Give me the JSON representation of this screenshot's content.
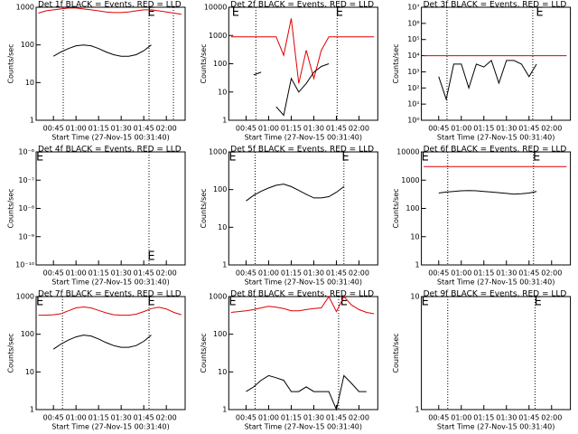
{
  "chart_data": [
    {
      "type": "line",
      "title": "Det 1f BLACK = Events, RED = LLD",
      "x_label": "Start Time (27-Nov-15 00:31:40)",
      "y_label": "Counts/sec",
      "log_y": true,
      "x": [
        35,
        40,
        45,
        50,
        55,
        60,
        65,
        70,
        75,
        80,
        85,
        90,
        95,
        100,
        105,
        110,
        115,
        120,
        125,
        130
      ],
      "xlim": [
        33.5,
        132.5
      ],
      "xticks": [
        {
          "value": 45,
          "label": "00:45"
        },
        {
          "value": 60,
          "label": "01:00"
        },
        {
          "value": 75,
          "label": "01:15"
        },
        {
          "value": 90,
          "label": "01:30"
        },
        {
          "value": 105,
          "label": "01:45"
        },
        {
          "value": 120,
          "label": "02:00"
        }
      ],
      "ylim": [
        1,
        1000
      ],
      "yticks": [
        1,
        10,
        100,
        1000
      ],
      "vlines": [
        51.5,
        108.5,
        124.7
      ],
      "annotations": [
        {
          "text": "E",
          "x": 110,
          "y": 1000
        }
      ],
      "series": [
        {
          "color": "#e00000",
          "values": [
            700,
            800,
            850,
            900,
            950,
            950,
            900,
            850,
            800,
            750,
            720,
            720,
            750,
            800,
            850,
            850,
            800,
            750,
            700,
            650
          ]
        },
        {
          "color": "#000000",
          "values": [
            null,
            null,
            50,
            65,
            80,
            95,
            100,
            95,
            80,
            65,
            55,
            50,
            50,
            55,
            70,
            100,
            null,
            null,
            null,
            null
          ]
        }
      ]
    },
    {
      "type": "line",
      "title": "Det 2f BLACK = Events, RED = LLD",
      "x_label": "Start Time (27-Nov-15 00:31:40)",
      "y_label": "Counts/sec",
      "log_y": true,
      "x": [
        35,
        40,
        45,
        50,
        55,
        60,
        65,
        70,
        75,
        80,
        85,
        90,
        95,
        100,
        105,
        110,
        115,
        120,
        125,
        130
      ],
      "xlim": [
        33.5,
        132.5
      ],
      "xticks": [
        {
          "value": 45,
          "label": "00:45"
        },
        {
          "value": 60,
          "label": "01:00"
        },
        {
          "value": 75,
          "label": "01:15"
        },
        {
          "value": 90,
          "label": "01:30"
        },
        {
          "value": 105,
          "label": "01:45"
        },
        {
          "value": 120,
          "label": "02:00"
        }
      ],
      "ylim": [
        1,
        10000
      ],
      "yticks": [
        1,
        10,
        100,
        1000,
        10000
      ],
      "vlines": [
        51.5,
        105.5
      ],
      "annotations": [
        {
          "text": "E",
          "x": 38,
          "y": 10000
        },
        {
          "text": "E",
          "x": 107,
          "y": 10000
        }
      ],
      "series": [
        {
          "color": "#e00000",
          "values": [
            900,
            900,
            900,
            900,
            900,
            900,
            900,
            200,
            4000,
            20,
            300,
            30,
            300,
            900,
            900,
            900,
            900,
            900,
            900,
            900
          ]
        },
        {
          "color": "#000000",
          "values": [
            null,
            null,
            null,
            40,
            50,
            null,
            3,
            1.5,
            30,
            10,
            20,
            50,
            80,
            100,
            null,
            null,
            null,
            null,
            null,
            null
          ]
        }
      ]
    },
    {
      "type": "line",
      "title": "Det 3f BLACK = Events, RED = LLD",
      "x_label": "Start Time (27-Nov-15 00:31:40)",
      "y_label": "Counts/sec",
      "log_y": true,
      "x": [
        35,
        40,
        45,
        50,
        55,
        60,
        65,
        70,
        75,
        80,
        85,
        90,
        95,
        100,
        105,
        110,
        115,
        120,
        125,
        130
      ],
      "xlim": [
        33.5,
        132.5
      ],
      "xticks": [
        {
          "value": 45,
          "label": "00:45"
        },
        {
          "value": 60,
          "label": "01:00"
        },
        {
          "value": 75,
          "label": "01:15"
        },
        {
          "value": 90,
          "label": "01:30"
        },
        {
          "value": 105,
          "label": "01:45"
        },
        {
          "value": 120,
          "label": "02:00"
        }
      ],
      "ylim": [
        1,
        10000000
      ],
      "yticks": [
        {
          "value": 1,
          "label": "10⁰"
        },
        {
          "value": 10,
          "label": "10¹"
        },
        {
          "value": 100,
          "label": "10²"
        },
        {
          "value": 1000,
          "label": "10³"
        },
        {
          "value": 10000,
          "label": "10⁴"
        },
        {
          "value": 100000,
          "label": "10⁵"
        },
        {
          "value": 1000000,
          "label": "10⁶"
        },
        {
          "value": 10000000,
          "label": "10⁷"
        }
      ],
      "vlines": [
        50.5,
        107.5
      ],
      "annotations": [
        {
          "text": "E",
          "x": 112,
          "y": 10000000
        }
      ],
      "series": [
        {
          "color": "#e00000",
          "values": [
            10000,
            10000,
            10000,
            10000,
            10000,
            10000,
            10000,
            10000,
            10000,
            10000,
            10000,
            10000,
            10000,
            10000,
            10000,
            10000,
            10000,
            10000,
            10000,
            10000
          ]
        },
        {
          "color": "#000000",
          "values": [
            null,
            null,
            500,
            20,
            3000,
            3000,
            100,
            3000,
            2000,
            5000,
            200,
            5000,
            5000,
            3000,
            500,
            3000,
            null,
            null,
            null,
            null
          ]
        }
      ]
    },
    {
      "type": "line",
      "title": "Det 4f BLACK = Events, RED = LLD",
      "x_label": "Start Time (27-Nov-15 00:31:40)",
      "y_label": "Counts/sec",
      "log_y": true,
      "xlim": [
        33.5,
        132.5
      ],
      "xticks": [
        {
          "value": 45,
          "label": "00:45"
        },
        {
          "value": 60,
          "label": "01:00"
        },
        {
          "value": 75,
          "label": "01:15"
        },
        {
          "value": 90,
          "label": "01:30"
        },
        {
          "value": 105,
          "label": "01:45"
        },
        {
          "value": 120,
          "label": "02:00"
        }
      ],
      "ylim": [
        1e-10,
        1e-06
      ],
      "yticks": [
        {
          "value": 1e-10,
          "label": "10⁻¹⁰"
        },
        {
          "value": 1e-09,
          "label": "10⁻⁹"
        },
        {
          "value": 1e-08,
          "label": "10⁻⁸"
        },
        {
          "value": 1e-07,
          "label": "10⁻⁷"
        },
        {
          "value": 1e-06,
          "label": "10⁻⁶"
        }
      ],
      "vlines": [
        108.5
      ],
      "annotations": [
        {
          "text": "E",
          "x": 36,
          "y": 1e-06
        },
        {
          "text": "E",
          "x": 110,
          "y": 3e-10
        }
      ],
      "series": []
    },
    {
      "type": "line",
      "title": "Det 5f BLACK = Events, RED = LLD",
      "x_label": "Start Time (27-Nov-15 00:31:40)",
      "y_label": "Counts/sec",
      "log_y": true,
      "x": [
        35,
        40,
        45,
        50,
        55,
        60,
        65,
        70,
        75,
        80,
        85,
        90,
        95,
        100,
        105,
        110,
        115,
        120,
        125,
        130
      ],
      "xlim": [
        33.5,
        132.5
      ],
      "xticks": [
        {
          "value": 45,
          "label": "00:45"
        },
        {
          "value": 60,
          "label": "01:00"
        },
        {
          "value": 75,
          "label": "01:15"
        },
        {
          "value": 90,
          "label": "01:30"
        },
        {
          "value": 105,
          "label": "01:45"
        },
        {
          "value": 120,
          "label": "02:00"
        }
      ],
      "ylim": [
        1,
        1000
      ],
      "yticks": [
        1,
        10,
        100,
        1000
      ],
      "vlines": [
        51,
        110
      ],
      "annotations": [
        {
          "text": "E",
          "x": 36,
          "y": 1000
        },
        {
          "text": "E",
          "x": 111,
          "y": 1000
        }
      ],
      "series": [
        {
          "color": "#000000",
          "values": [
            null,
            null,
            50,
            70,
            90,
            110,
            130,
            140,
            120,
            95,
            75,
            60,
            60,
            65,
            85,
            120,
            null,
            null,
            null,
            null
          ]
        }
      ]
    },
    {
      "type": "line",
      "title": "Det 6f BLACK = Events, RED = LLD",
      "x_label": "Start Time (27-Nov-15 00:31:40)",
      "y_label": "Counts/sec",
      "log_y": true,
      "x": [
        35,
        40,
        45,
        50,
        55,
        60,
        65,
        70,
        75,
        80,
        85,
        90,
        95,
        100,
        105,
        110,
        115,
        120,
        125,
        130
      ],
      "xlim": [
        33.5,
        132.5
      ],
      "xticks": [
        {
          "value": 45,
          "label": "00:45"
        },
        {
          "value": 60,
          "label": "01:00"
        },
        {
          "value": 75,
          "label": "01:15"
        },
        {
          "value": 90,
          "label": "01:30"
        },
        {
          "value": 105,
          "label": "01:45"
        },
        {
          "value": 120,
          "label": "02:00"
        }
      ],
      "ylim": [
        1,
        10000
      ],
      "yticks": [
        1,
        10,
        100,
        1000,
        10000
      ],
      "vlines": [
        51,
        108
      ],
      "annotations": [
        {
          "text": "E",
          "x": 36,
          "y": 10000
        },
        {
          "text": "E",
          "x": 110,
          "y": 10000
        }
      ],
      "series": [
        {
          "color": "#e00000",
          "values": [
            3000,
            3000,
            3000,
            3000,
            3000,
            3000,
            3000,
            3000,
            3000,
            3000,
            3000,
            3000,
            3000,
            3000,
            3000,
            3000,
            3000,
            3000,
            3000,
            3000
          ]
        },
        {
          "color": "#000000",
          "values": [
            null,
            null,
            350,
            380,
            400,
            420,
            430,
            420,
            400,
            380,
            360,
            340,
            320,
            330,
            350,
            400,
            null,
            null,
            null,
            null
          ]
        }
      ]
    },
    {
      "type": "line",
      "title": "Det 7f BLACK = Events, RED = LLD",
      "x_label": "Start Time (27-Nov-15 00:31:40)",
      "y_label": "Counts/sec",
      "log_y": true,
      "x": [
        35,
        40,
        45,
        50,
        55,
        60,
        65,
        70,
        75,
        80,
        85,
        90,
        95,
        100,
        105,
        110,
        115,
        120,
        125,
        130
      ],
      "xlim": [
        33.5,
        132.5
      ],
      "xticks": [
        {
          "value": 45,
          "label": "00:45"
        },
        {
          "value": 60,
          "label": "01:00"
        },
        {
          "value": 75,
          "label": "01:15"
        },
        {
          "value": 90,
          "label": "01:30"
        },
        {
          "value": 105,
          "label": "01:45"
        },
        {
          "value": 120,
          "label": "02:00"
        }
      ],
      "ylim": [
        1,
        1000
      ],
      "yticks": [
        1,
        10,
        100,
        1000
      ],
      "vlines": [
        51,
        108.5
      ],
      "annotations": [
        {
          "text": "E",
          "x": 36,
          "y": 1000
        },
        {
          "text": "E",
          "x": 110,
          "y": 1000
        }
      ],
      "series": [
        {
          "color": "#e00000",
          "values": [
            320,
            320,
            330,
            350,
            420,
            500,
            530,
            500,
            430,
            370,
            330,
            320,
            320,
            340,
            400,
            480,
            520,
            470,
            380,
            330
          ]
        },
        {
          "color": "#000000",
          "values": [
            null,
            null,
            40,
            55,
            70,
            85,
            95,
            90,
            75,
            60,
            50,
            45,
            45,
            50,
            65,
            95,
            null,
            null,
            null,
            null
          ]
        }
      ]
    },
    {
      "type": "line",
      "title": "Det 8f BLACK = Events, RED = LLD",
      "x_label": "Start Time (27-Nov-15 00:31:40)",
      "y_label": "Counts/sec",
      "log_y": true,
      "x": [
        35,
        40,
        45,
        50,
        55,
        60,
        65,
        70,
        75,
        80,
        85,
        90,
        95,
        100,
        105,
        110,
        115,
        120,
        125,
        130
      ],
      "xlim": [
        33.5,
        132.5
      ],
      "xticks": [
        {
          "value": 45,
          "label": "00:45"
        },
        {
          "value": 60,
          "label": "01:00"
        },
        {
          "value": 75,
          "label": "01:15"
        },
        {
          "value": 90,
          "label": "01:30"
        },
        {
          "value": 105,
          "label": "01:45"
        },
        {
          "value": 120,
          "label": "02:00"
        }
      ],
      "ylim": [
        1,
        1000
      ],
      "yticks": [
        1,
        10,
        100,
        1000
      ],
      "vlines": [
        51,
        106.5
      ],
      "annotations": [
        {
          "text": "E",
          "x": 36,
          "y": 1000
        },
        {
          "text": "E",
          "x": 110,
          "y": 1000
        }
      ],
      "series": [
        {
          "color": "#e00000",
          "values": [
            380,
            400,
            420,
            450,
            500,
            550,
            520,
            480,
            420,
            420,
            450,
            480,
            500,
            1000,
            400,
            1000,
            600,
            450,
            380,
            350
          ]
        },
        {
          "color": "#000000",
          "values": [
            null,
            null,
            3,
            4,
            6,
            8,
            7,
            6,
            3,
            3,
            4,
            3,
            3,
            3,
            1,
            8,
            5,
            3,
            3,
            null
          ]
        }
      ]
    },
    {
      "type": "line",
      "title": "Det 9f BLACK = Events, RED = LLD",
      "x_label": "Start Time (27-Nov-15 00:31:40)",
      "y_label": "Counts/sec",
      "log_y": true,
      "xlim": [
        33.5,
        132.5
      ],
      "xticks": [
        {
          "value": 45,
          "label": "00:45"
        },
        {
          "value": 60,
          "label": "01:00"
        },
        {
          "value": 75,
          "label": "01:15"
        },
        {
          "value": 90,
          "label": "01:30"
        },
        {
          "value": 105,
          "label": "01:45"
        },
        {
          "value": 120,
          "label": "02:00"
        }
      ],
      "ylim": [
        1,
        10
      ],
      "yticks": [
        1,
        10
      ],
      "vlines": [
        51,
        109
      ],
      "annotations": [
        {
          "text": "E",
          "x": 36,
          "y": 10
        },
        {
          "text": "E",
          "x": 111,
          "y": 10
        }
      ],
      "series": []
    }
  ]
}
